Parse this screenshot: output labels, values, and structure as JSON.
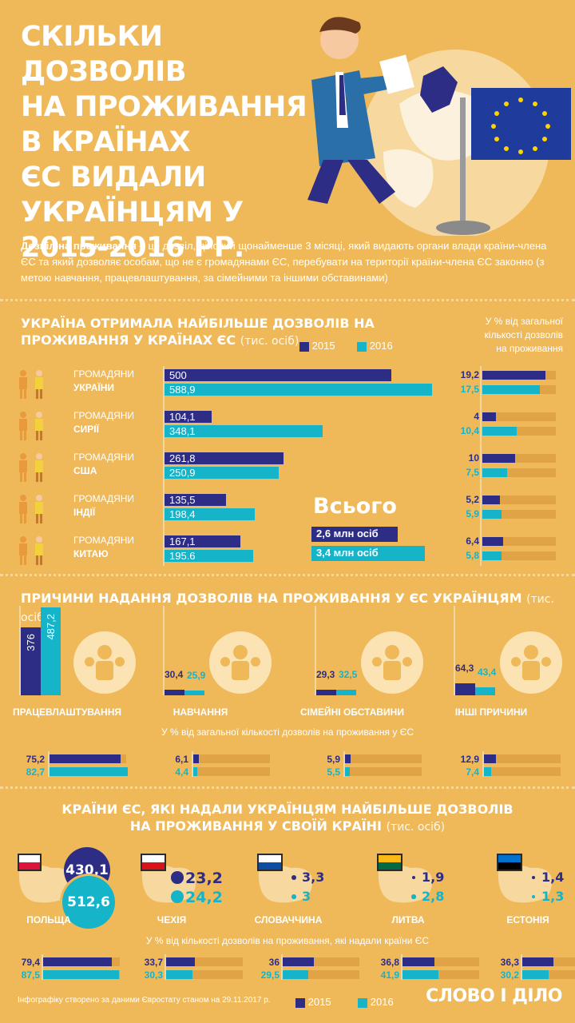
{
  "header": {
    "title_lines": [
      "СКІЛЬКИ ДОЗВОЛІВ",
      "НА ПРОЖИВАННЯ",
      "В КРАЇНАХ",
      "ЄС ВИДАЛИ",
      "УКРАЇНЦЯМ У",
      "2015-2016 РР."
    ],
    "intro_bold": "Дозвіл на проживання",
    "intro_text": " – це дозвіл, дійсний щонайменше 3 місяці, який видають органи влади країни-члена ЄС та який дозволяє особам, що не є громадянами ЄС, перебувати на території країни-члена ЄС законно (з метою навчання, працевлаштування,  за сімейними та іншими обставинами)"
  },
  "colors": {
    "y2015": "#2e2d85",
    "y2016": "#15b4c8",
    "background": "#efb95a"
  },
  "legend": {
    "y2015": "2015",
    "y2016": "2016"
  },
  "chart_data": [
    {
      "type": "bar",
      "title_bold_1": "УКРАЇНА ОТРИМАЛА НАЙБІЛЬШЕ ДОЗВОЛІВ НА",
      "title_bold_2": "ПРОЖИВАННЯ У КРАЇНАХ ЄС",
      "title_unit": "(тис. осіб)",
      "pct_header": [
        "У % від загальної",
        "кількості дозволів",
        "на проживання"
      ],
      "citizens_word": "ГРОМАДЯНИ",
      "categories": [
        "УКРАЇНИ",
        "СИРІЇ",
        "США",
        "ІНДІЇ",
        "КИТАЮ"
      ],
      "series": [
        {
          "name": "2015",
          "values": [
            500,
            104.1,
            261.8,
            135.5,
            167.1
          ],
          "labels": [
            "500",
            "104,1",
            "261,8",
            "135,5",
            "167,1"
          ],
          "pct": [
            19.2,
            4,
            10,
            5.2,
            6.4
          ],
          "pct_labels": [
            "19,2",
            "4",
            "10",
            "5,2",
            "6,4"
          ]
        },
        {
          "name": "2016",
          "values": [
            588.9,
            348.1,
            250.9,
            198.4,
            195.6
          ],
          "labels": [
            "588,9",
            "348,1",
            "250,9",
            "198,4",
            "195.6"
          ],
          "pct": [
            17.5,
            10.4,
            7.5,
            5.9,
            5.8
          ],
          "pct_labels": [
            "17,5",
            "10,4",
            "7,5",
            "5,9",
            "5,8"
          ]
        }
      ],
      "total": {
        "label": "Всього",
        "y2015": "2,6 млн осіб",
        "y2016": "3,4 млн осіб"
      }
    },
    {
      "type": "bar",
      "title_bold": "ПРИЧИНИ НАДАННЯ ДОЗВОЛІВ НА ПРОЖИВАННЯ У ЄС УКРАЇНЦЯМ",
      "title_unit": "(тис. осіб)",
      "categories": [
        "ПРАЦЕВЛАШТУВАННЯ",
        "НАВЧАННЯ",
        "СІМЕЙНІ ОБСТАВИНИ",
        "ІНШІ ПРИЧИНИ"
      ],
      "series": [
        {
          "name": "2015",
          "values": [
            376,
            30.4,
            29.3,
            64.3
          ],
          "labels": [
            "376",
            "30,4",
            "29,3",
            "64,3"
          ],
          "pct": [
            75.2,
            6.1,
            5.9,
            12.9
          ],
          "pct_labels": [
            "75,2",
            "6,1",
            "5,9",
            "12,9"
          ]
        },
        {
          "name": "2016",
          "values": [
            487.2,
            25.9,
            32.5,
            43.4
          ],
          "labels": [
            "487,2",
            "25,9",
            "32,5",
            "43,4"
          ],
          "pct": [
            82.7,
            4.4,
            5.5,
            7.4
          ],
          "pct_labels": [
            "82,7",
            "4,4",
            "5,5",
            "7,4"
          ]
        }
      ],
      "pct_caption": "У % від загальної кількості дозволів на проживання у ЄС"
    },
    {
      "type": "bar",
      "title_bold_1": "КРАЇНИ ЄС, ЯКІ НАДАЛИ УКРАЇНЦЯМ НАЙБІЛЬШЕ ДОЗВОЛІВ",
      "title_bold_2": "НА ПРОЖИВАННЯ У СВОЇЙ КРАЇНІ",
      "title_unit": "(тис. осіб)",
      "categories": [
        "ПОЛЬЩА",
        "ЧЕХІЯ",
        "СЛОВАЧЧИНА",
        "ЛИТВА",
        "ЕСТОНІЯ"
      ],
      "series": [
        {
          "name": "2015",
          "values": [
            430.1,
            23.2,
            3.3,
            1.9,
            1.4
          ],
          "labels": [
            "430,1",
            "23,2",
            "3,3",
            "1,9",
            "1,4"
          ],
          "pct": [
            79.4,
            33.7,
            36,
            36.8,
            36.3
          ],
          "pct_labels": [
            "79,4",
            "33,7",
            "36",
            "36,8",
            "36,3"
          ]
        },
        {
          "name": "2016",
          "values": [
            512.6,
            24.2,
            3,
            2.8,
            1.3
          ],
          "labels": [
            "512,6",
            "24,2",
            "3",
            "2,8",
            "1,3"
          ],
          "pct": [
            87.5,
            30.3,
            29.5,
            41.9,
            30.2
          ],
          "pct_labels": [
            "87,5",
            "30,3",
            "29,5",
            "41,9",
            "30,2"
          ]
        }
      ],
      "pct_caption": "У % від кількості дозволів на проживання, які надали країни ЄС"
    }
  ],
  "footer": {
    "source": "Інфографіку створено за даними Євростату станом на 29.11.2017 р.",
    "logo_1": "СЛОВО",
    "logo_sep": "І",
    "logo_2": "ДІЛО"
  },
  "icons": [
    "businessman-illustration-icon",
    "globe-icon",
    "eu-flag-icon",
    "person-icon",
    "worker-icon",
    "teacher-icon",
    "family-icon",
    "meeting-icon",
    "map-icon",
    "flag-icon"
  ]
}
